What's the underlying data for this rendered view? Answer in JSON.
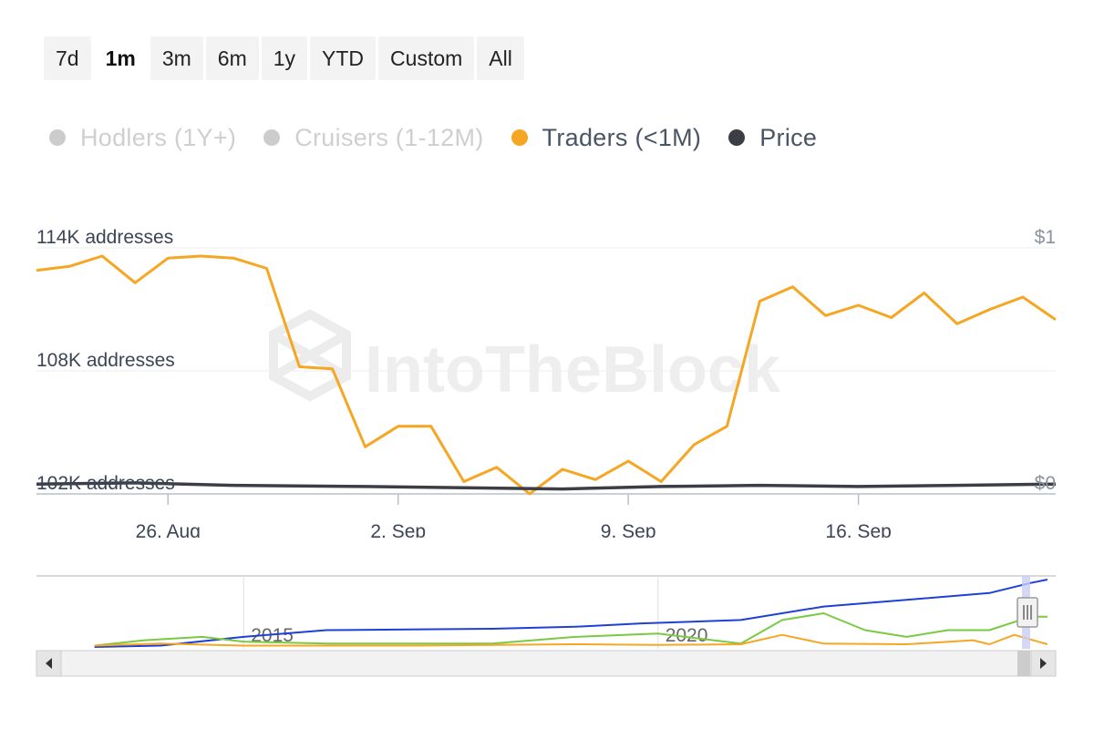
{
  "range_buttons": [
    {
      "label": "7d",
      "active": false
    },
    {
      "label": "1m",
      "active": true
    },
    {
      "label": "3m",
      "active": false
    },
    {
      "label": "6m",
      "active": false
    },
    {
      "label": "1y",
      "active": false
    },
    {
      "label": "YTD",
      "active": false
    },
    {
      "label": "Custom",
      "active": false
    },
    {
      "label": "All",
      "active": false
    }
  ],
  "legend": [
    {
      "label": "Hodlers (1Y+)",
      "color": "#cccccc",
      "visible": false
    },
    {
      "label": "Cruisers (1-12M)",
      "color": "#cccccc",
      "visible": false
    },
    {
      "label": "Traders (<1M)",
      "color": "#f5a623",
      "visible": true
    },
    {
      "label": "Price",
      "color": "#3b3f45",
      "visible": true
    }
  ],
  "watermark": "IntoTheBlock",
  "chart_data": {
    "type": "line",
    "y_left_ticks": [
      "114K addresses",
      "108K addresses",
      "102K addresses"
    ],
    "y_right_ticks": [
      "$1",
      "$0"
    ],
    "ylim_left": [
      102000,
      114000
    ],
    "ylim_right": [
      0,
      1
    ],
    "x_tick_labels": [
      "26. Aug",
      "2. Sep",
      "9. Sep",
      "16. Sep"
    ],
    "x_tick_dates": [
      "2024-08-26",
      "2024-09-02",
      "2024-09-09",
      "2024-09-16"
    ],
    "xlim": [
      "2024-08-22",
      "2024-09-22"
    ],
    "series": [
      {
        "name": "Traders (<1M)",
        "color": "#f5a623",
        "axis": "left",
        "x": [
          "2024-08-22",
          "2024-08-23",
          "2024-08-24",
          "2024-08-25",
          "2024-08-26",
          "2024-08-27",
          "2024-08-28",
          "2024-08-29",
          "2024-08-30",
          "2024-08-31",
          "2024-09-01",
          "2024-09-02",
          "2024-09-03",
          "2024-09-04",
          "2024-09-05",
          "2024-09-06",
          "2024-09-07",
          "2024-09-08",
          "2024-09-09",
          "2024-09-10",
          "2024-09-11",
          "2024-09-12",
          "2024-09-13",
          "2024-09-14",
          "2024-09-15",
          "2024-09-16",
          "2024-09-17",
          "2024-09-18",
          "2024-09-19",
          "2024-09-20",
          "2024-09-21",
          "2024-09-22"
        ],
        "y": [
          112900,
          113100,
          113600,
          112300,
          113500,
          113600,
          113500,
          113000,
          108200,
          108100,
          104300,
          105300,
          105300,
          102600,
          103300,
          102000,
          103200,
          102700,
          103600,
          102600,
          104400,
          105300,
          111400,
          112100,
          110700,
          111200,
          110600,
          111800,
          110300,
          111000,
          111600,
          110500
        ]
      },
      {
        "name": "Price",
        "color": "#3b3f45",
        "axis": "right",
        "x": [
          "2024-08-22",
          "2024-08-25",
          "2024-08-28",
          "2024-09-01",
          "2024-09-04",
          "2024-09-07",
          "2024-09-10",
          "2024-09-13",
          "2024-09-16",
          "2024-09-19",
          "2024-09-22"
        ],
        "y": [
          0.04,
          0.045,
          0.035,
          0.03,
          0.025,
          0.02,
          0.03,
          0.035,
          0.03,
          0.035,
          0.04
        ]
      }
    ]
  },
  "navigator": {
    "tick_labels": [
      "2015",
      "2020"
    ],
    "tick_years": [
      2015,
      2020
    ],
    "xlim": [
      2012.5,
      2024.8
    ],
    "series": [
      {
        "color": "#1f3fd6",
        "x": [
          2013.2,
          2014.0,
          2015.0,
          2016.0,
          2017.0,
          2018.0,
          2019.0,
          2019.8,
          2021.0,
          2022.0,
          2023.0,
          2024.0,
          2024.5,
          2024.7
        ],
        "y": [
          0.0,
          0.02,
          0.15,
          0.25,
          0.26,
          0.27,
          0.3,
          0.35,
          0.4,
          0.6,
          0.7,
          0.8,
          0.95,
          1.0
        ]
      },
      {
        "color": "#7ac943",
        "x": [
          2013.2,
          2013.8,
          2014.5,
          2015.0,
          2016.0,
          2017.0,
          2018.0,
          2019.0,
          2020.0,
          2021.0,
          2021.5,
          2022.0,
          2022.5,
          2023.0,
          2023.5,
          2024.0,
          2024.5,
          2024.7
        ],
        "y": [
          0.02,
          0.1,
          0.15,
          0.08,
          0.05,
          0.05,
          0.05,
          0.15,
          0.2,
          0.05,
          0.4,
          0.5,
          0.25,
          0.15,
          0.25,
          0.25,
          0.45,
          0.45
        ]
      },
      {
        "color": "#f5a623",
        "x": [
          2013.2,
          2014.0,
          2015.0,
          2016.0,
          2017.0,
          2018.0,
          2019.0,
          2020.0,
          2021.0,
          2021.5,
          2022.0,
          2023.0,
          2023.8,
          2024.0,
          2024.3,
          2024.7
        ],
        "y": [
          0.02,
          0.05,
          0.02,
          0.02,
          0.02,
          0.03,
          0.04,
          0.03,
          0.04,
          0.18,
          0.05,
          0.04,
          0.1,
          0.04,
          0.18,
          0.04
        ]
      }
    ]
  }
}
